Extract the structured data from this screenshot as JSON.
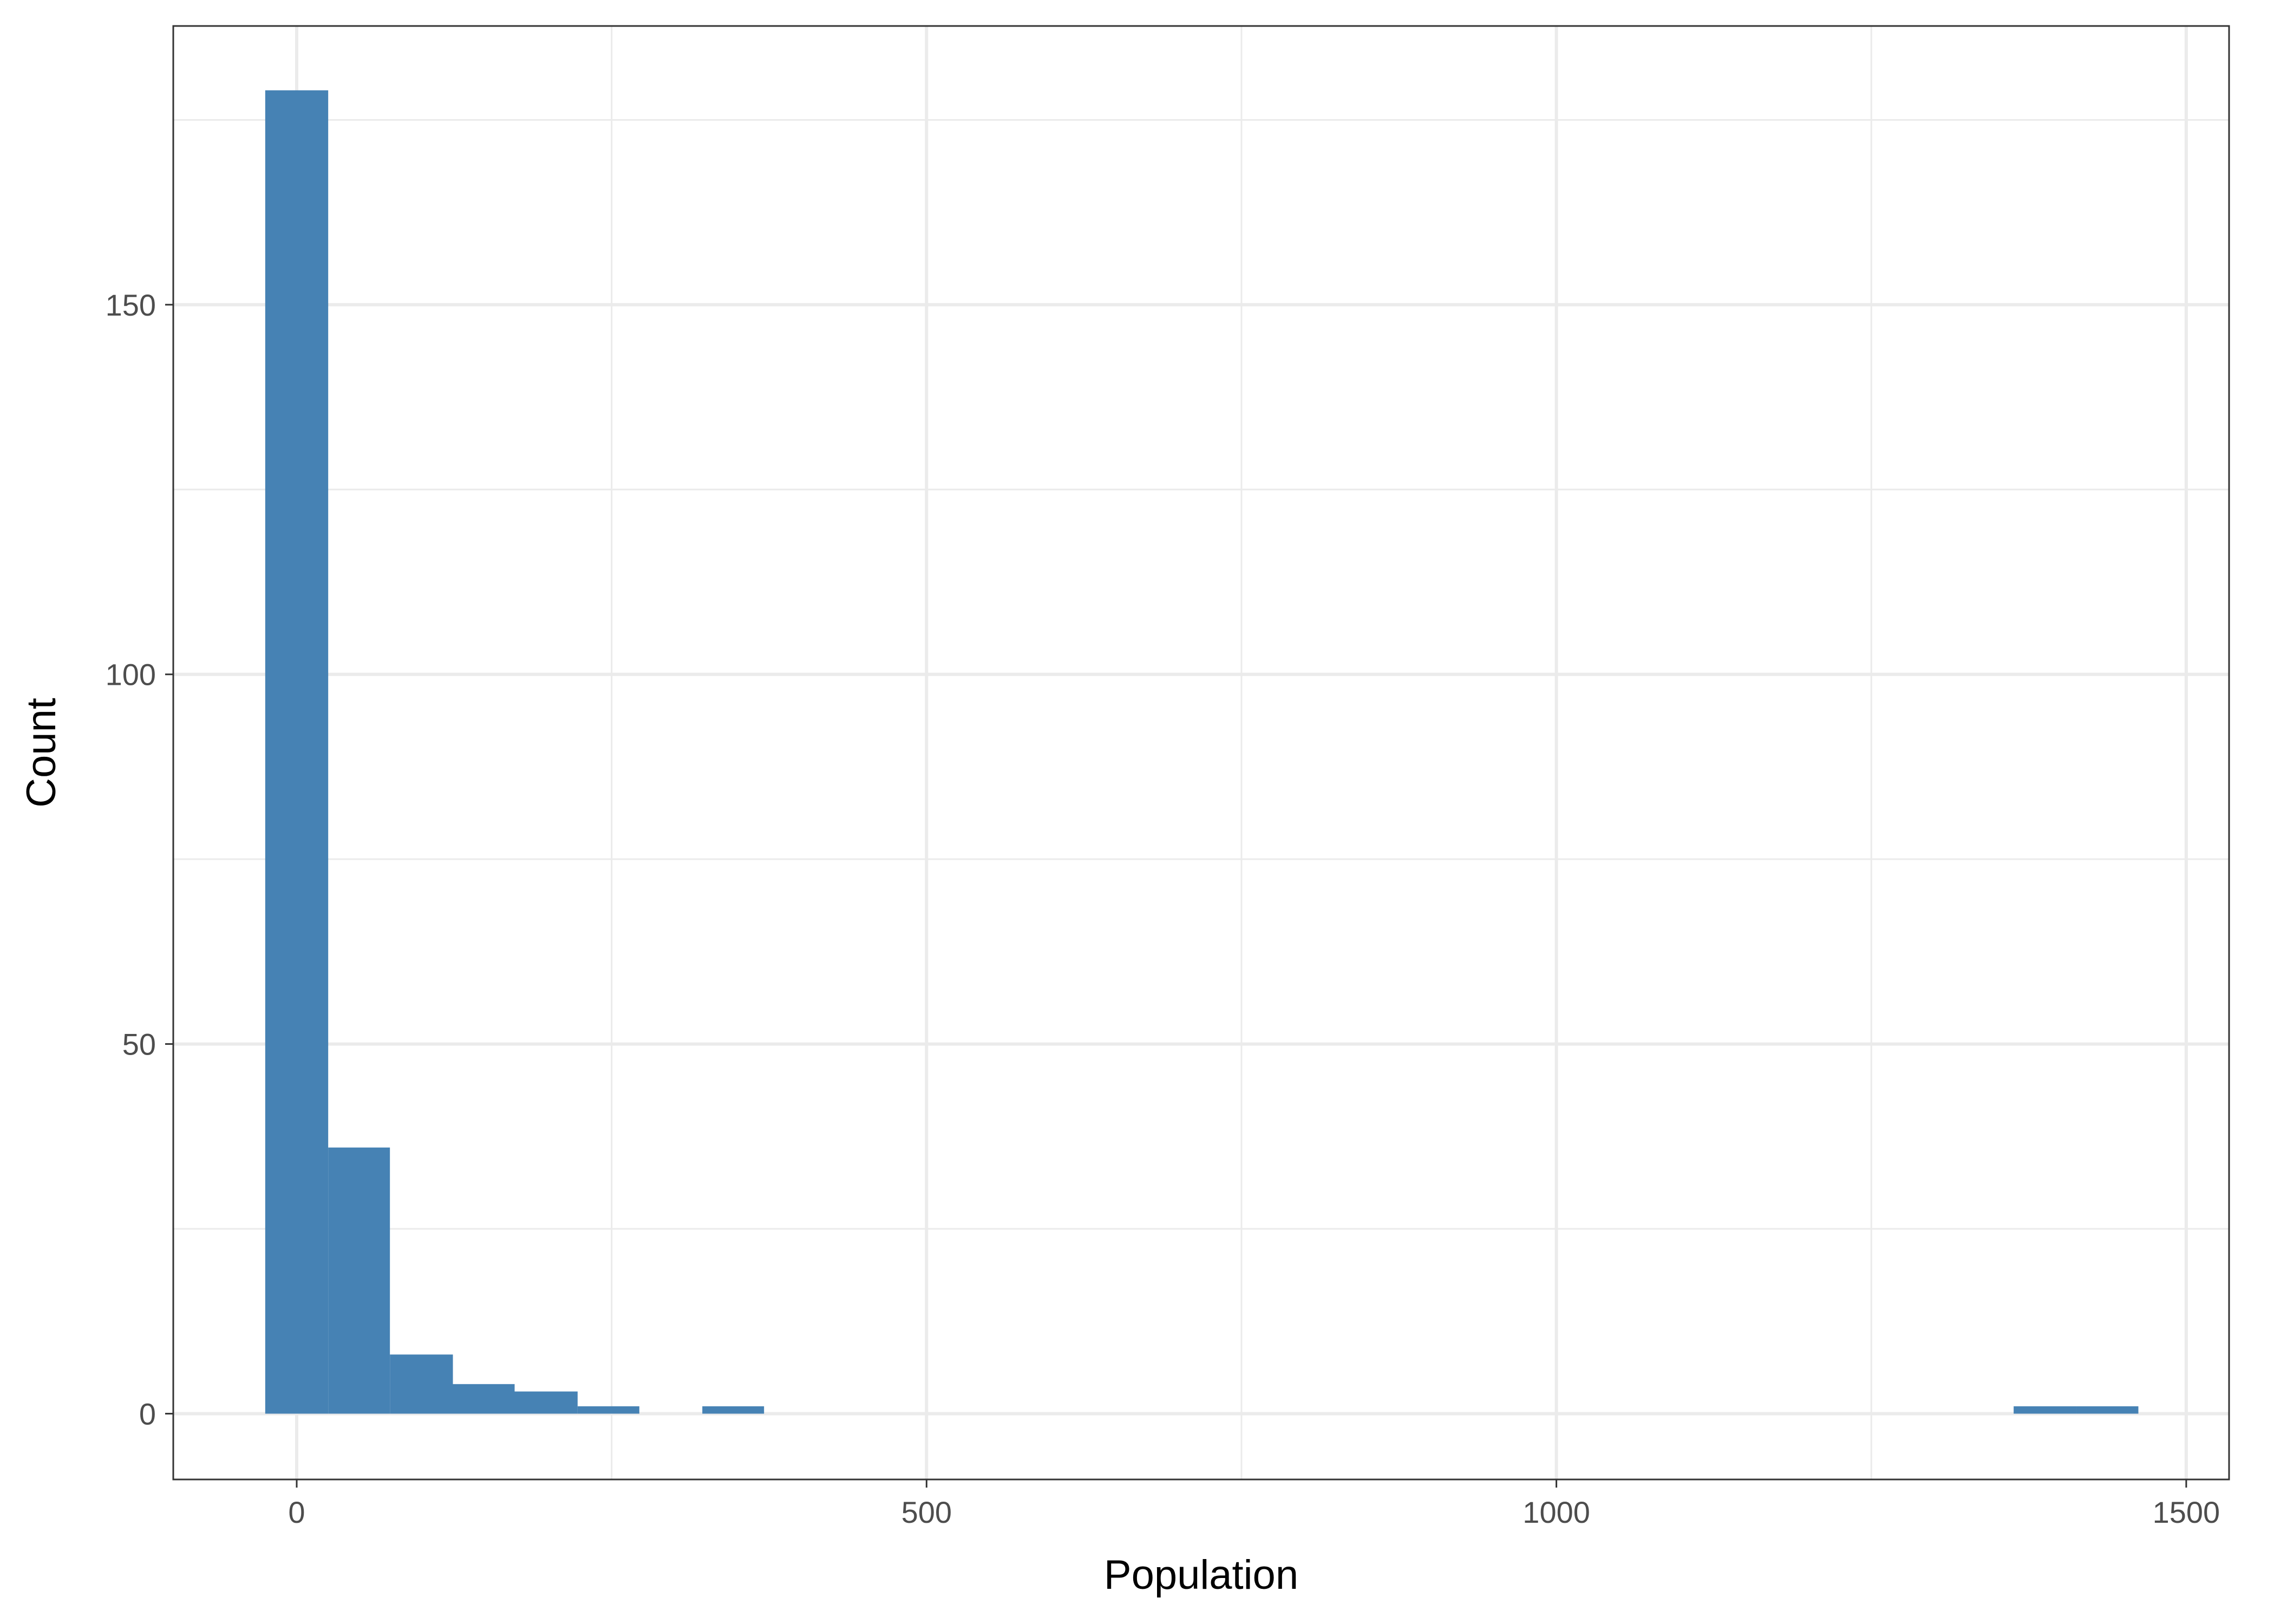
{
  "chart_data": {
    "type": "bar",
    "subtype": "histogram",
    "title": "",
    "xlabel": "Population",
    "ylabel": "Count",
    "xlim": [
      -98,
      1534
    ],
    "ylim": [
      -8.9,
      187.7
    ],
    "x_ticks": [
      0,
      500,
      1000,
      1500
    ],
    "x_tick_labels": [
      "0",
      "500",
      "1000",
      "1500"
    ],
    "y_ticks": [
      0,
      50,
      100,
      150
    ],
    "y_tick_labels": [
      "0",
      "50",
      "100",
      "150"
    ],
    "x_minor_ticks": [
      250,
      750,
      1250
    ],
    "y_minor_ticks": [
      25,
      75,
      125,
      175
    ],
    "grid": true,
    "legend": "none",
    "bar_color": "#4682B4",
    "bins": [
      {
        "x0": -25,
        "x1": 25,
        "count": 179
      },
      {
        "x0": 25,
        "x1": 74,
        "count": 36
      },
      {
        "x0": 74,
        "x1": 124,
        "count": 8
      },
      {
        "x0": 124,
        "x1": 173,
        "count": 4
      },
      {
        "x0": 173,
        "x1": 223,
        "count": 3
      },
      {
        "x0": 223,
        "x1": 272,
        "count": 1
      },
      {
        "x0": 272,
        "x1": 322,
        "count": 0
      },
      {
        "x0": 322,
        "x1": 371,
        "count": 1
      },
      {
        "x0": 1363,
        "x1": 1413,
        "count": 1
      },
      {
        "x0": 1413,
        "x1": 1462,
        "count": 1
      }
    ]
  }
}
